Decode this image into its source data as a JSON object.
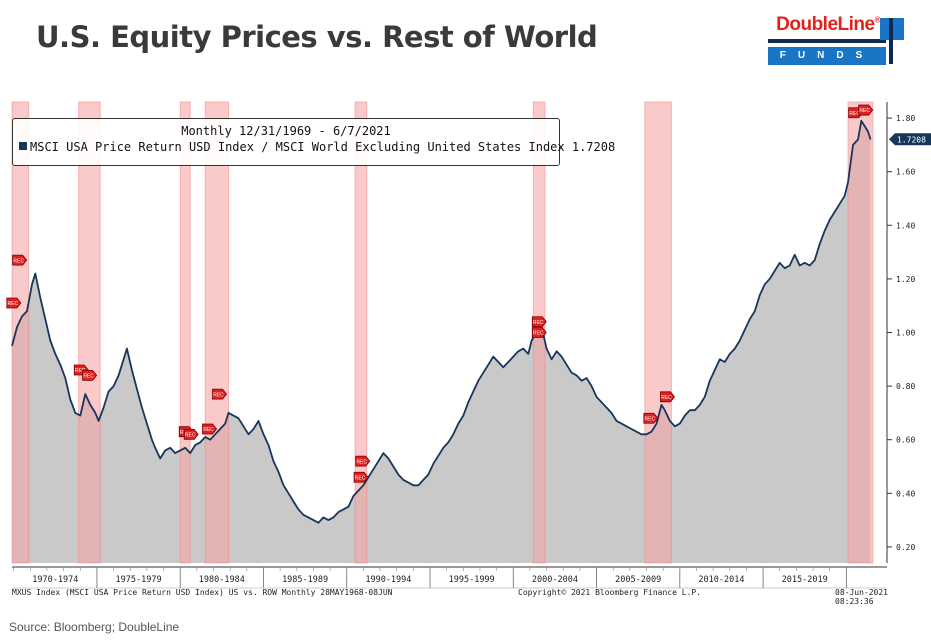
{
  "header": {
    "title": "U.S. Equity Prices vs. Rest of World",
    "logo_word": "DoubleLine",
    "logo_reg": "®",
    "logo_sub": "FUNDS"
  },
  "source": "Source: Bloomberg; DoubleLine",
  "legend": {
    "heading": "Monthly 12/31/1969 - 6/7/2021",
    "series_label": "MSCI USA Price Return USD Index / MSCI World Excluding United States Index 1.7208"
  },
  "footer": {
    "left": "MXUS Index (MSCI USA Price Return USD Index) US vs. ROW  Monthly 28MAY1968-08JUN",
    "center": "Copyright© 2021 Bloomberg Finance L.P.",
    "right": "08-Jun-2021 08:23:36"
  },
  "colors": {
    "line": "#16365c",
    "area": "#c9c9c9",
    "recession": "#f7a6a6",
    "marker": "#e02020"
  },
  "chart_data": {
    "type": "area",
    "title": "U.S. Equity Prices vs. Rest of World",
    "subtitle": "Monthly 12/31/1969 - 6/7/2021",
    "series_name": "MSCI USA Price Return USD Index / MSCI World Excluding United States Index",
    "last_value": 1.7208,
    "last_value_label": "1.7208",
    "xlim": [
      1969.9,
      2021.6
    ],
    "ylim": [
      0.14,
      1.86
    ],
    "yticks": [
      0.2,
      0.4,
      0.6,
      0.8,
      1.0,
      1.2,
      1.4,
      1.6,
      1.8
    ],
    "ytick_labels": [
      "0.20",
      "0.40",
      "0.60",
      "0.80",
      "1.00",
      "1.20",
      "1.40",
      "1.60",
      "1.80"
    ],
    "x_groups": [
      {
        "label": "1970-1974",
        "start": 1970,
        "end": 1975
      },
      {
        "label": "1975-1979",
        "start": 1975,
        "end": 1980
      },
      {
        "label": "1980-1984",
        "start": 1980,
        "end": 1985
      },
      {
        "label": "1985-1989",
        "start": 1985,
        "end": 1990
      },
      {
        "label": "1990-1994",
        "start": 1990,
        "end": 1995
      },
      {
        "label": "1995-1999",
        "start": 1995,
        "end": 2000
      },
      {
        "label": "2000-2004",
        "start": 2000,
        "end": 2005
      },
      {
        "label": "2005-2009",
        "start": 2005,
        "end": 2010
      },
      {
        "label": "2010-2014",
        "start": 2010,
        "end": 2015
      },
      {
        "label": "2015-2019",
        "start": 2015,
        "end": 2020
      }
    ],
    "recessions": [
      {
        "start": 1969.9,
        "end": 1970.9
      },
      {
        "start": 1973.9,
        "end": 1975.2
      },
      {
        "start": 1980.0,
        "end": 1980.6
      },
      {
        "start": 1981.5,
        "end": 1982.9
      },
      {
        "start": 1990.5,
        "end": 1991.2
      },
      {
        "start": 2001.2,
        "end": 2001.9
      },
      {
        "start": 2007.9,
        "end": 2009.5
      },
      {
        "start": 2020.1,
        "end": 2021.6
      }
    ],
    "points": [
      [
        1969.9,
        0.95
      ],
      [
        1970.2,
        1.02
      ],
      [
        1970.5,
        1.06
      ],
      [
        1970.8,
        1.08
      ],
      [
        1971.1,
        1.18
      ],
      [
        1971.3,
        1.22
      ],
      [
        1971.6,
        1.13
      ],
      [
        1971.9,
        1.05
      ],
      [
        1972.2,
        0.97
      ],
      [
        1972.5,
        0.92
      ],
      [
        1972.8,
        0.88
      ],
      [
        1973.1,
        0.83
      ],
      [
        1973.4,
        0.75
      ],
      [
        1973.7,
        0.7
      ],
      [
        1974.0,
        0.69
      ],
      [
        1974.3,
        0.77
      ],
      [
        1974.6,
        0.73
      ],
      [
        1974.9,
        0.7
      ],
      [
        1975.1,
        0.67
      ],
      [
        1975.4,
        0.72
      ],
      [
        1975.7,
        0.78
      ],
      [
        1976.0,
        0.8
      ],
      [
        1976.3,
        0.84
      ],
      [
        1976.6,
        0.9
      ],
      [
        1976.8,
        0.94
      ],
      [
        1977.1,
        0.86
      ],
      [
        1977.4,
        0.79
      ],
      [
        1977.7,
        0.72
      ],
      [
        1978.0,
        0.66
      ],
      [
        1978.3,
        0.6
      ],
      [
        1978.5,
        0.57
      ],
      [
        1978.8,
        0.53
      ],
      [
        1979.1,
        0.56
      ],
      [
        1979.4,
        0.57
      ],
      [
        1979.7,
        0.55
      ],
      [
        1980.0,
        0.56
      ],
      [
        1980.3,
        0.57
      ],
      [
        1980.6,
        0.55
      ],
      [
        1980.9,
        0.58
      ],
      [
        1981.2,
        0.59
      ],
      [
        1981.5,
        0.61
      ],
      [
        1981.8,
        0.6
      ],
      [
        1982.1,
        0.62
      ],
      [
        1982.4,
        0.64
      ],
      [
        1982.7,
        0.66
      ],
      [
        1982.9,
        0.7
      ],
      [
        1983.2,
        0.69
      ],
      [
        1983.5,
        0.68
      ],
      [
        1983.8,
        0.65
      ],
      [
        1984.1,
        0.62
      ],
      [
        1984.4,
        0.64
      ],
      [
        1984.7,
        0.67
      ],
      [
        1985.0,
        0.62
      ],
      [
        1985.3,
        0.58
      ],
      [
        1985.6,
        0.52
      ],
      [
        1985.9,
        0.48
      ],
      [
        1986.2,
        0.43
      ],
      [
        1986.5,
        0.4
      ],
      [
        1986.8,
        0.37
      ],
      [
        1987.1,
        0.34
      ],
      [
        1987.4,
        0.32
      ],
      [
        1987.7,
        0.31
      ],
      [
        1988.0,
        0.3
      ],
      [
        1988.3,
        0.29
      ],
      [
        1988.6,
        0.31
      ],
      [
        1988.9,
        0.3
      ],
      [
        1989.2,
        0.31
      ],
      [
        1989.5,
        0.33
      ],
      [
        1989.8,
        0.34
      ],
      [
        1990.1,
        0.35
      ],
      [
        1990.4,
        0.39
      ],
      [
        1990.7,
        0.41
      ],
      [
        1991.0,
        0.43
      ],
      [
        1991.3,
        0.46
      ],
      [
        1991.6,
        0.49
      ],
      [
        1991.9,
        0.52
      ],
      [
        1992.2,
        0.55
      ],
      [
        1992.5,
        0.53
      ],
      [
        1992.8,
        0.5
      ],
      [
        1993.1,
        0.47
      ],
      [
        1993.4,
        0.45
      ],
      [
        1993.7,
        0.44
      ],
      [
        1994.0,
        0.43
      ],
      [
        1994.3,
        0.43
      ],
      [
        1994.6,
        0.45
      ],
      [
        1994.9,
        0.47
      ],
      [
        1995.2,
        0.51
      ],
      [
        1995.5,
        0.54
      ],
      [
        1995.8,
        0.57
      ],
      [
        1996.1,
        0.59
      ],
      [
        1996.4,
        0.62
      ],
      [
        1996.7,
        0.66
      ],
      [
        1997.0,
        0.69
      ],
      [
        1997.3,
        0.74
      ],
      [
        1997.6,
        0.78
      ],
      [
        1997.9,
        0.82
      ],
      [
        1998.2,
        0.85
      ],
      [
        1998.5,
        0.88
      ],
      [
        1998.8,
        0.91
      ],
      [
        1999.1,
        0.89
      ],
      [
        1999.4,
        0.87
      ],
      [
        1999.7,
        0.89
      ],
      [
        2000.0,
        0.91
      ],
      [
        2000.3,
        0.93
      ],
      [
        2000.6,
        0.94
      ],
      [
        2000.9,
        0.92
      ],
      [
        2001.1,
        0.97
      ],
      [
        2001.4,
        1.0
      ],
      [
        2001.7,
        1.02
      ],
      [
        2002.0,
        0.94
      ],
      [
        2002.3,
        0.9
      ],
      [
        2002.6,
        0.93
      ],
      [
        2002.9,
        0.91
      ],
      [
        2003.2,
        0.88
      ],
      [
        2003.5,
        0.85
      ],
      [
        2003.8,
        0.84
      ],
      [
        2004.1,
        0.82
      ],
      [
        2004.4,
        0.83
      ],
      [
        2004.7,
        0.8
      ],
      [
        2005.0,
        0.76
      ],
      [
        2005.3,
        0.74
      ],
      [
        2005.6,
        0.72
      ],
      [
        2005.9,
        0.7
      ],
      [
        2006.2,
        0.67
      ],
      [
        2006.5,
        0.66
      ],
      [
        2006.8,
        0.65
      ],
      [
        2007.1,
        0.64
      ],
      [
        2007.4,
        0.63
      ],
      [
        2007.7,
        0.62
      ],
      [
        2008.0,
        0.62
      ],
      [
        2008.3,
        0.63
      ],
      [
        2008.6,
        0.66
      ],
      [
        2008.9,
        0.73
      ],
      [
        2009.1,
        0.71
      ],
      [
        2009.4,
        0.67
      ],
      [
        2009.7,
        0.65
      ],
      [
        2010.0,
        0.66
      ],
      [
        2010.3,
        0.69
      ],
      [
        2010.6,
        0.71
      ],
      [
        2010.9,
        0.71
      ],
      [
        2011.2,
        0.73
      ],
      [
        2011.5,
        0.76
      ],
      [
        2011.8,
        0.82
      ],
      [
        2012.1,
        0.86
      ],
      [
        2012.4,
        0.9
      ],
      [
        2012.7,
        0.89
      ],
      [
        2013.0,
        0.92
      ],
      [
        2013.3,
        0.94
      ],
      [
        2013.6,
        0.97
      ],
      [
        2013.9,
        1.01
      ],
      [
        2014.2,
        1.05
      ],
      [
        2014.5,
        1.08
      ],
      [
        2014.8,
        1.14
      ],
      [
        2015.1,
        1.18
      ],
      [
        2015.4,
        1.2
      ],
      [
        2015.7,
        1.23
      ],
      [
        2016.0,
        1.26
      ],
      [
        2016.3,
        1.24
      ],
      [
        2016.6,
        1.25
      ],
      [
        2016.9,
        1.29
      ],
      [
        2017.2,
        1.25
      ],
      [
        2017.5,
        1.26
      ],
      [
        2017.8,
        1.25
      ],
      [
        2018.1,
        1.27
      ],
      [
        2018.4,
        1.33
      ],
      [
        2018.7,
        1.38
      ],
      [
        2019.0,
        1.42
      ],
      [
        2019.3,
        1.45
      ],
      [
        2019.6,
        1.48
      ],
      [
        2019.9,
        1.51
      ],
      [
        2020.1,
        1.56
      ],
      [
        2020.4,
        1.7
      ],
      [
        2020.7,
        1.72
      ],
      [
        2020.9,
        1.79
      ],
      [
        2021.1,
        1.77
      ],
      [
        2021.3,
        1.75
      ],
      [
        2021.45,
        1.72
      ]
    ],
    "markers": [
      {
        "x": 1970.3,
        "y": 1.27,
        "label": "REC"
      },
      {
        "x": 1969.95,
        "y": 1.11,
        "label": "REC"
      },
      {
        "x": 1974.0,
        "y": 0.86,
        "label": "REC"
      },
      {
        "x": 1974.5,
        "y": 0.84,
        "label": "REC"
      },
      {
        "x": 1980.3,
        "y": 0.63,
        "label": "REC"
      },
      {
        "x": 1980.6,
        "y": 0.62,
        "label": "REC"
      },
      {
        "x": 1981.7,
        "y": 0.64,
        "label": "REC"
      },
      {
        "x": 1982.3,
        "y": 0.77,
        "label": "REC"
      },
      {
        "x": 1990.9,
        "y": 0.52,
        "label": "REC"
      },
      {
        "x": 1990.8,
        "y": 0.46,
        "label": "REC"
      },
      {
        "x": 2001.5,
        "y": 1.04,
        "label": "REC"
      },
      {
        "x": 2001.5,
        "y": 1.0,
        "label": "REC"
      },
      {
        "x": 2008.2,
        "y": 0.68,
        "label": "REC"
      },
      {
        "x": 2009.2,
        "y": 0.76,
        "label": "REC"
      },
      {
        "x": 2020.5,
        "y": 1.82,
        "label": "REC"
      },
      {
        "x": 2021.1,
        "y": 1.83,
        "label": "REC"
      }
    ]
  }
}
